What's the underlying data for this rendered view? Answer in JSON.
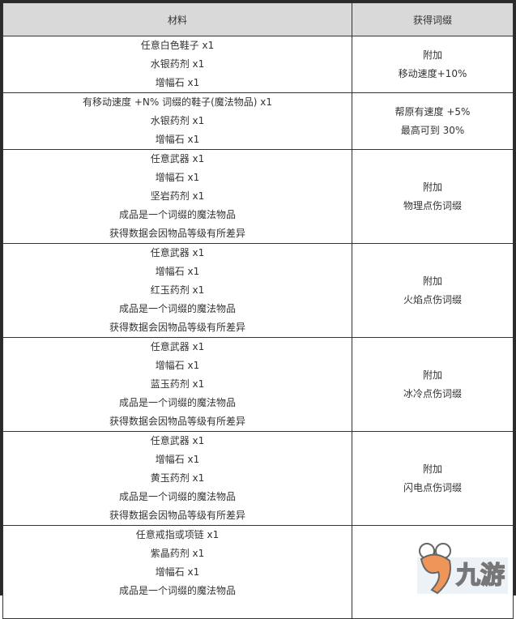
{
  "table": {
    "headers": [
      "材料",
      "获得词缀"
    ],
    "rows": [
      {
        "materials": [
          "任意白色鞋子 x1",
          "水银药剂 x1",
          "增幅石 x1"
        ],
        "affix": [
          "附加",
          "移动速度+10%"
        ]
      },
      {
        "materials": [
          "有移动速度 +N% 词缀的鞋子(魔法物品) x1",
          "水银药剂 x1",
          "增幅石 x1"
        ],
        "affix": [
          "帮原有速度 +5%",
          "最高可到 30%"
        ]
      },
      {
        "materials": [
          "任意武器 x1",
          "增幅石 x1",
          "坚岩药剂 x1",
          "成品是一个词缀的魔法物品",
          "获得数据会因物品等级有所差异"
        ],
        "affix": [
          "附加",
          "物理点伤词缀"
        ]
      },
      {
        "materials": [
          "任意武器 x1",
          "增幅石 x1",
          "红玉药剂 x1",
          "成品是一个词缀的魔法物品",
          "获得数据会因物品等级有所差异"
        ],
        "affix": [
          "附加",
          "火焰点伤词缀"
        ]
      },
      {
        "materials": [
          "任意武器 x1",
          "增幅石 x1",
          "蓝玉药剂 x1",
          "成品是一个词缀的魔法物品",
          "获得数据会因物品等级有所差异"
        ],
        "affix": [
          "附加",
          "冰冷点伤词缀"
        ]
      },
      {
        "materials": [
          "任意武器 x1",
          "增幅石 x1",
          "黄玉药剂 x1",
          "成品是一个词缀的魔法物品",
          "获得数据会因物品等级有所差异"
        ],
        "affix": [
          "附加",
          "闪电点伤词缀"
        ]
      },
      {
        "materials": [
          "任意戒指或项链 x1",
          "紫晶药剂 x1",
          "增幅石 x1",
          "成品是一个词缀的魔法物品"
        ],
        "affix": [
          "附加"
        ]
      }
    ]
  },
  "watermark": {
    "text": "九游",
    "colors": {
      "orange": "#f0955a",
      "yellow": "#f7d25a"
    }
  }
}
